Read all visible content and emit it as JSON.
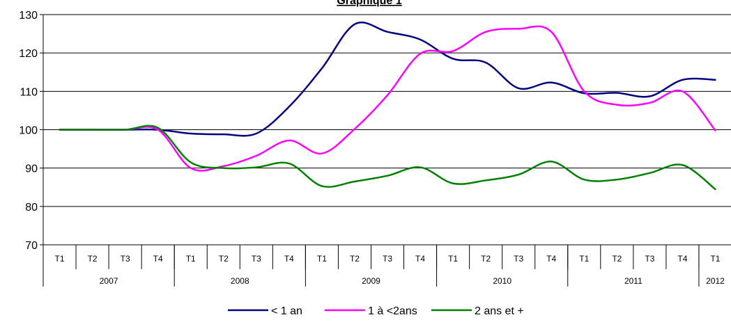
{
  "chart_data": {
    "type": "line",
    "title": "Graphique 1",
    "quarters": [
      "T1",
      "T2",
      "T3",
      "T4",
      "T1",
      "T2",
      "T3",
      "T4",
      "T1",
      "T2",
      "T3",
      "T4",
      "T1",
      "T2",
      "T3",
      "T4",
      "T1",
      "T2",
      "T3",
      "T4",
      "T1"
    ],
    "years": [
      {
        "label": "2007",
        "span": 4
      },
      {
        "label": "2008",
        "span": 4
      },
      {
        "label": "2009",
        "span": 4
      },
      {
        "label": "2010",
        "span": 4
      },
      {
        "label": "2011",
        "span": 4
      },
      {
        "label": "2012",
        "span": 1
      }
    ],
    "ylim": [
      70,
      130
    ],
    "yticks": [
      70,
      80,
      90,
      100,
      110,
      120,
      130
    ],
    "grid": true,
    "legend_position": "bottom",
    "series": [
      {
        "name": "< 1 an",
        "color": "#000080",
        "values": [
          100,
          100,
          100,
          100,
          99,
          98.8,
          99,
          106,
          116,
          127.5,
          125.5,
          123.5,
          118.5,
          117.5,
          110.8,
          112.3,
          109.5,
          109.6,
          108.7,
          113,
          113
        ]
      },
      {
        "name": "1 à <2ans",
        "color": "#FF00FF",
        "values": [
          100,
          100,
          100,
          100,
          90,
          90.5,
          93.2,
          97.2,
          93.8,
          100.2,
          109,
          119.8,
          120.5,
          125.5,
          126.3,
          125.5,
          110,
          106.5,
          107,
          110,
          99.8
        ]
      },
      {
        "name": "2 ans et +",
        "color": "#008000",
        "values": [
          100,
          100,
          100,
          100.5,
          91.5,
          90,
          90.2,
          91.2,
          85.3,
          86.5,
          88,
          90.2,
          86,
          86.8,
          88.3,
          91.7,
          87,
          87,
          88.7,
          90.8,
          84.5
        ]
      }
    ]
  }
}
